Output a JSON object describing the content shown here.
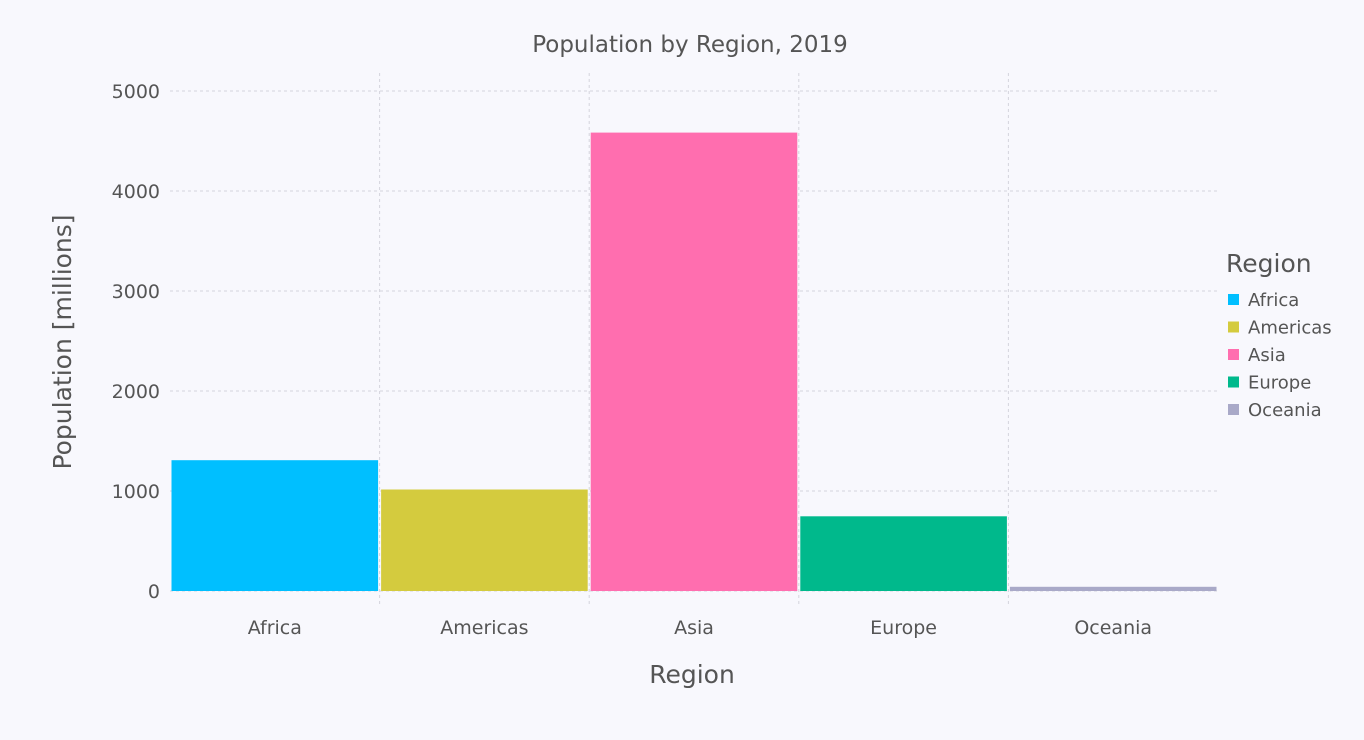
{
  "chart_data": {
    "type": "bar",
    "title": "Population by Region, 2019",
    "xlabel": "Region",
    "ylabel": "Population [millions]",
    "categories": [
      "Africa",
      "Americas",
      "Asia",
      "Europe",
      "Oceania"
    ],
    "values": [
      1308,
      1015,
      4584,
      747,
      42
    ],
    "colors": [
      "#00bfff",
      "#d4cb3e",
      "#ff6eaf",
      "#00b98c",
      "#a9a9c8"
    ],
    "ylim": [
      0,
      5000
    ],
    "yticks": [
      "0",
      "1000",
      "2000",
      "3000",
      "4000",
      "5000"
    ],
    "grid": true,
    "legend": {
      "title": "Region",
      "placement": "right",
      "items": [
        "Africa",
        "Americas",
        "Asia",
        "Europe",
        "Oceania"
      ]
    }
  }
}
